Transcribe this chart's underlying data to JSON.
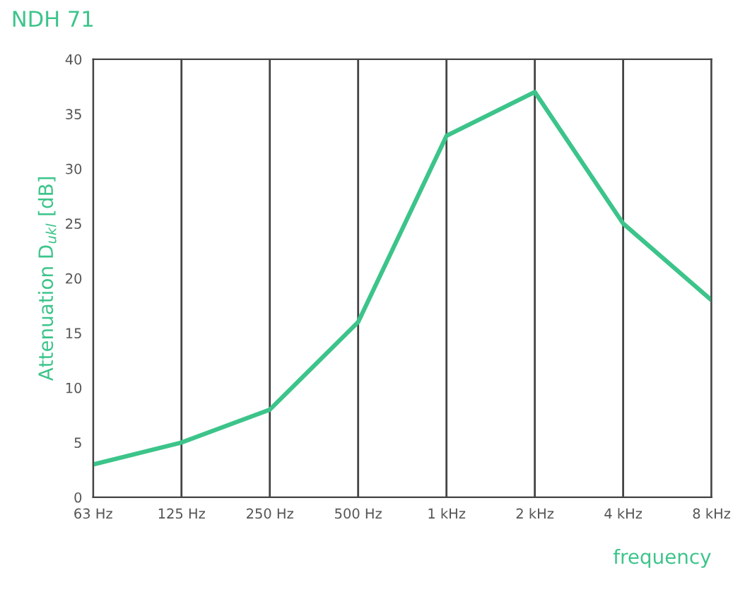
{
  "chart_data": {
    "type": "line",
    "title": "NDH 71",
    "ylabel": "Attenuation D$_{ukl}$ [dB]",
    "xlabel": "frequency",
    "categories": [
      "63 Hz",
      "125 Hz",
      "250 Hz",
      "500 Hz",
      "1 kHz",
      "2 kHz",
      "4 kHz",
      "8 kHz"
    ],
    "series": [
      {
        "color": "#3cc48a",
        "values": [
          3,
          5,
          8,
          16,
          33,
          37,
          25,
          18
        ]
      }
    ],
    "ylim": [
      0,
      40
    ],
    "yticks": [
      0,
      5,
      10,
      15,
      20,
      25,
      30,
      35,
      40
    ],
    "grid": "x",
    "legend": false,
    "marker": "none",
    "line_style": "solid"
  }
}
